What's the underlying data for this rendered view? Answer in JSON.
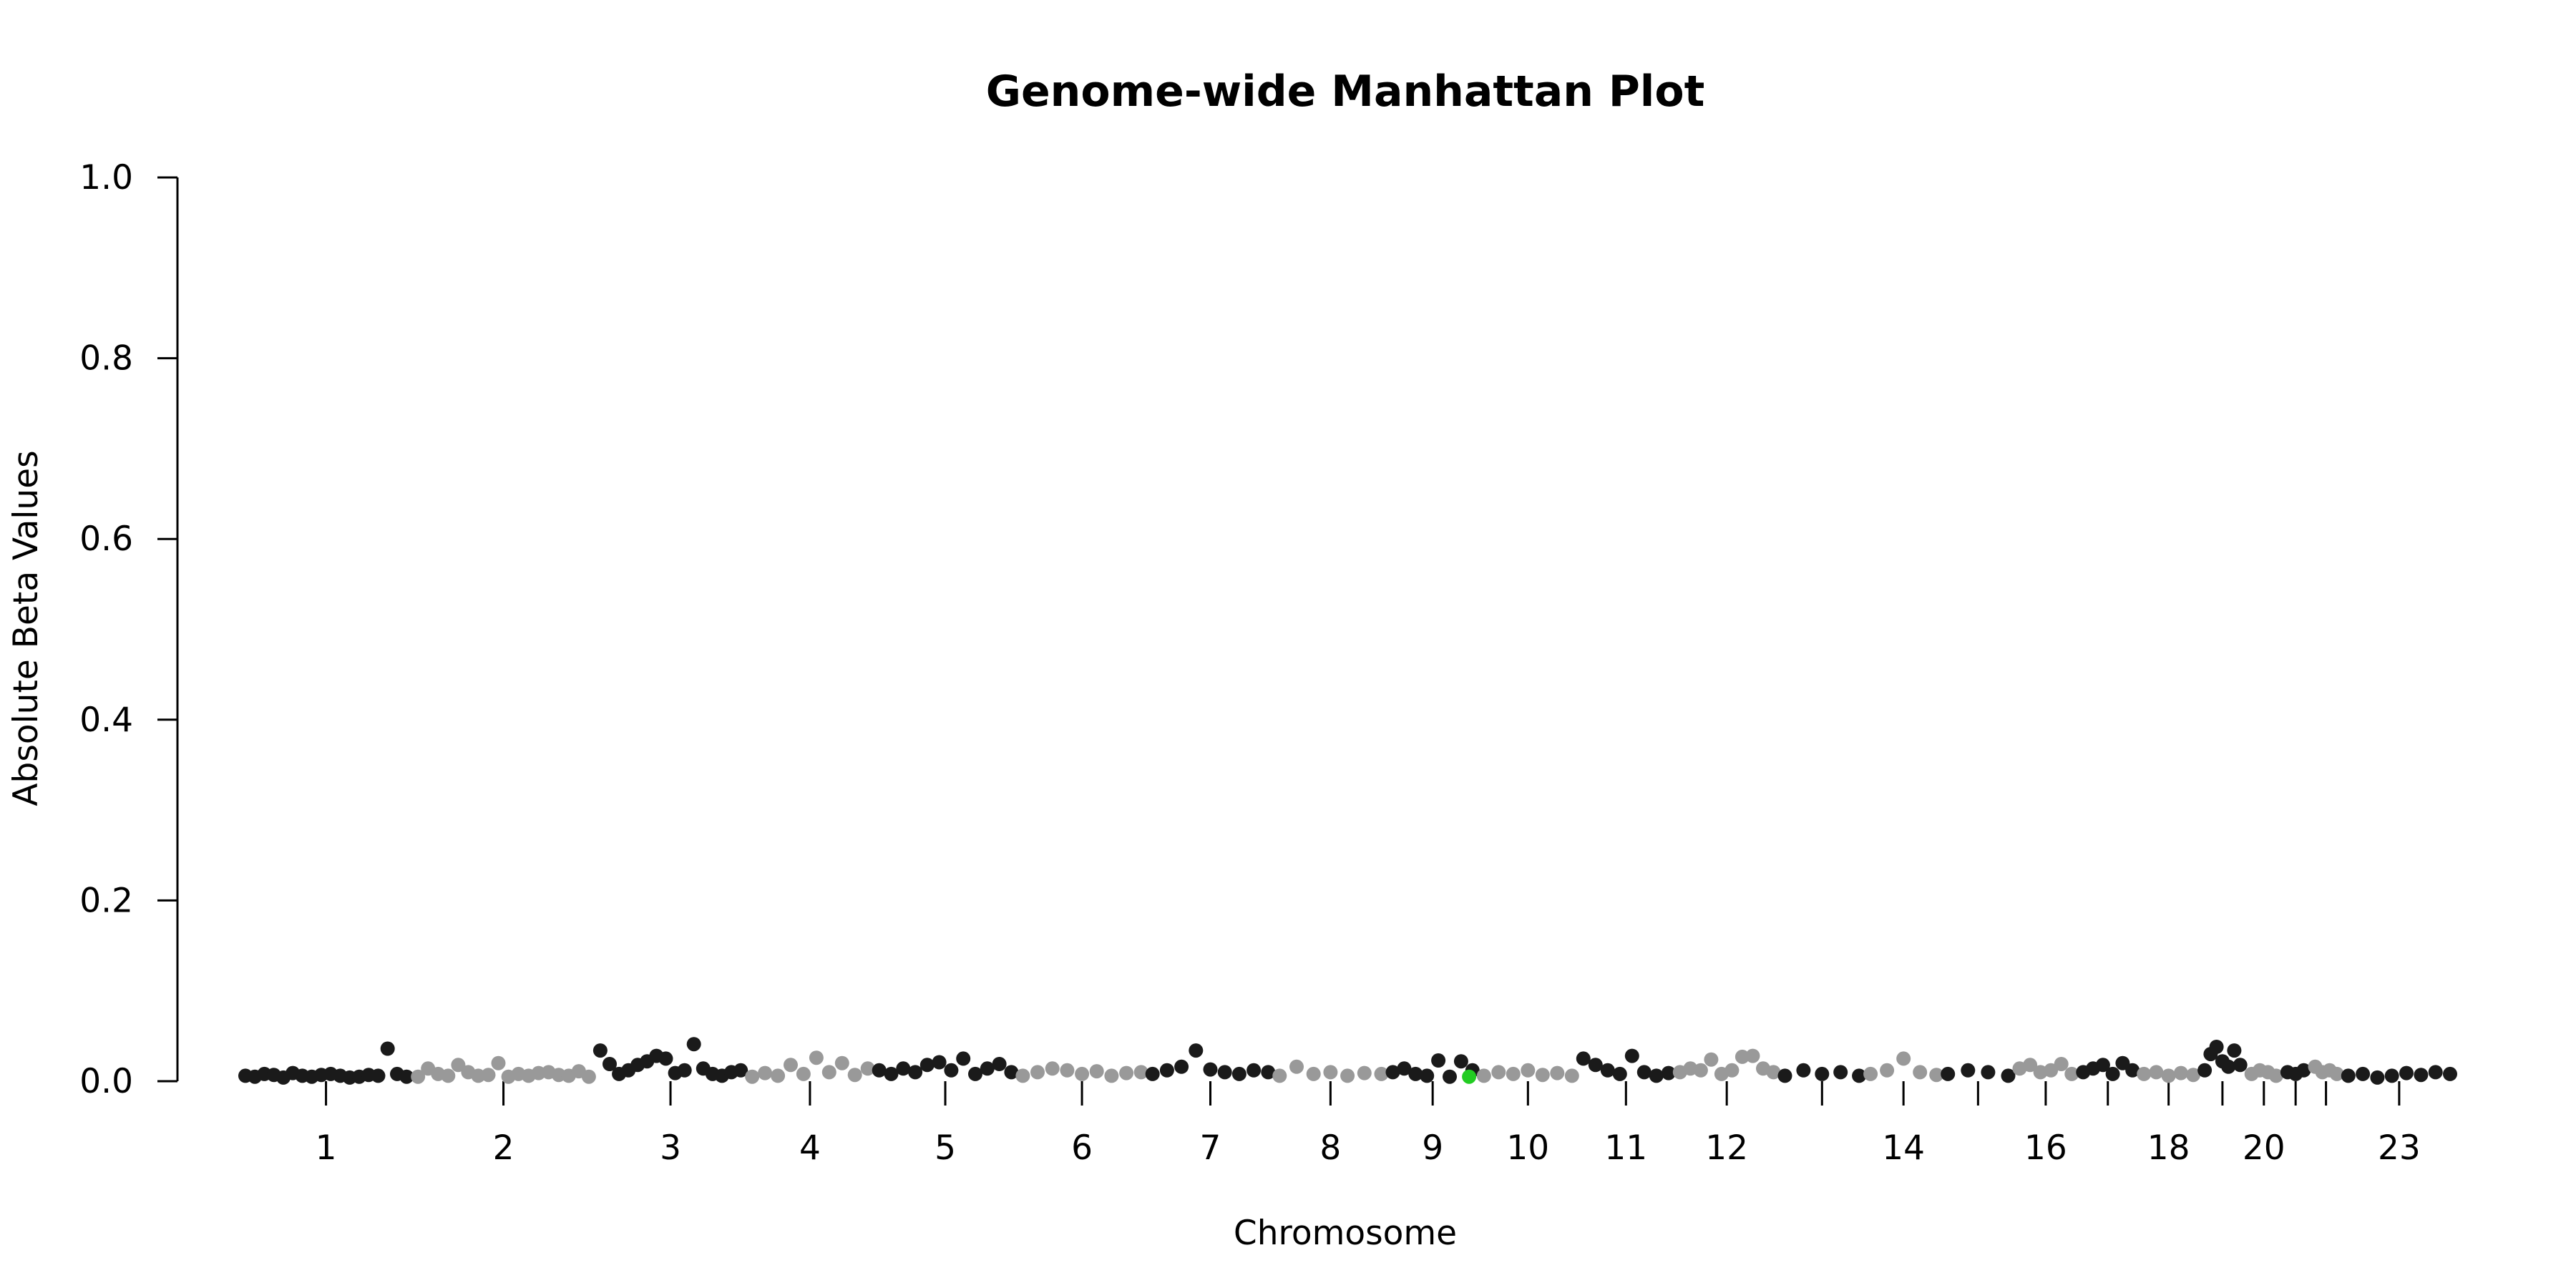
{
  "chart_data": {
    "type": "scatter",
    "title": "Genome-wide Manhattan Plot",
    "xlabel": "Chromosome",
    "ylabel": "Absolute Beta Values",
    "ylim": [
      0,
      1.0
    ],
    "yticks": [
      "0.0",
      "0.2",
      "0.4",
      "0.6",
      "0.8",
      "1.0"
    ],
    "grid": false,
    "legend": "none",
    "chromosome_labels": [
      "1",
      "2",
      "3",
      "4",
      "5",
      "6",
      "7",
      "8",
      "9",
      "10",
      "11",
      "12",
      "14",
      "16",
      "18",
      "20",
      "23"
    ],
    "chromosome_ticks": [
      "1",
      "2",
      "3",
      "4",
      "5",
      "6",
      "7",
      "8",
      "9",
      "10",
      "11",
      "12",
      "13",
      "14",
      "15",
      "16",
      "17",
      "18",
      "19",
      "20",
      "21",
      "22",
      "23"
    ],
    "colors": {
      "odd": "#1a1a1a",
      "even": "#999999",
      "highlight": "#22cc22"
    },
    "chromosomes": [
      {
        "chr": "1",
        "points": [
          0.006,
          0.005,
          0.008,
          0.007,
          0.004,
          0.009,
          0.006,
          0.005,
          0.007,
          0.008,
          0.006,
          0.004,
          0.005,
          0.007,
          0.006,
          0.036,
          0.008,
          0.005
        ]
      },
      {
        "chr": "2",
        "points": [
          0.005,
          0.014,
          0.008,
          0.006,
          0.018,
          0.01,
          0.006,
          0.007,
          0.02,
          0.005,
          0.008,
          0.006,
          0.009,
          0.01,
          0.007,
          0.006,
          0.011,
          0.005
        ]
      },
      {
        "chr": "3",
        "points": [
          0.034,
          0.019,
          0.008,
          0.012,
          0.018,
          0.022,
          0.028,
          0.025,
          0.009,
          0.012,
          0.041,
          0.014,
          0.008,
          0.006,
          0.01,
          0.012
        ]
      },
      {
        "chr": "4",
        "points": [
          0.005,
          0.009,
          0.006,
          0.018,
          0.008,
          0.026,
          0.01,
          0.02,
          0.007,
          0.014
        ]
      },
      {
        "chr": "5",
        "points": [
          0.012,
          0.008,
          0.014,
          0.01,
          0.018,
          0.021,
          0.012,
          0.025,
          0.008,
          0.014,
          0.019,
          0.01
        ]
      },
      {
        "chr": "6",
        "points": [
          0.006,
          0.01,
          0.014,
          0.012,
          0.008,
          0.011,
          0.006,
          0.009,
          0.01
        ]
      },
      {
        "chr": "7",
        "points": [
          0.008,
          0.012,
          0.016,
          0.034,
          0.013,
          0.01,
          0.008,
          0.012,
          0.01
        ]
      },
      {
        "chr": "8",
        "points": [
          0.006,
          0.016,
          0.008,
          0.01,
          0.006,
          0.009,
          0.008
        ]
      },
      {
        "chr": "9",
        "points": [
          0.01,
          0.014,
          0.008,
          0.006,
          0.023,
          0.005,
          0.022,
          0.012
        ]
      },
      {
        "chr": "10",
        "points": [
          0.006,
          0.01,
          0.008,
          0.012,
          0.007,
          0.009,
          0.006
        ]
      },
      {
        "chr": "11",
        "points": [
          0.025,
          0.018,
          0.012,
          0.008,
          0.028,
          0.01,
          0.006,
          0.009
        ]
      },
      {
        "chr": "12",
        "points": [
          0.01,
          0.014,
          0.012,
          0.024,
          0.008,
          0.012,
          0.027,
          0.028,
          0.014,
          0.01
        ]
      },
      {
        "chr": "13",
        "points": [
          0.006,
          0.012,
          0.008,
          0.01,
          0.006
        ]
      },
      {
        "chr": "14",
        "points": [
          0.008,
          0.012,
          0.025,
          0.01,
          0.007
        ]
      },
      {
        "chr": "15",
        "points": [
          0.008,
          0.012,
          0.01,
          0.006
        ]
      },
      {
        "chr": "16",
        "points": [
          0.014,
          0.018,
          0.01,
          0.012,
          0.019,
          0.008
        ]
      },
      {
        "chr": "17",
        "points": [
          0.01,
          0.014,
          0.018,
          0.008,
          0.02,
          0.012
        ]
      },
      {
        "chr": "18",
        "points": [
          0.008,
          0.01,
          0.006,
          0.009,
          0.007
        ]
      },
      {
        "chr": "19",
        "points": [
          0.012,
          0.03,
          0.038,
          0.022,
          0.016,
          0.034,
          0.018
        ]
      },
      {
        "chr": "20",
        "points": [
          0.008,
          0.012,
          0.01,
          0.006
        ]
      },
      {
        "chr": "21",
        "points": [
          0.01,
          0.008,
          0.012
        ]
      },
      {
        "chr": "22",
        "points": [
          0.016,
          0.01,
          0.012,
          0.008
        ]
      },
      {
        "chr": "23",
        "points": [
          0.006,
          0.008,
          0.004,
          0.006,
          0.009,
          0.007,
          0.01,
          0.008
        ]
      }
    ],
    "highlighted_point": {
      "chr": "9",
      "value": 0.005
    }
  }
}
